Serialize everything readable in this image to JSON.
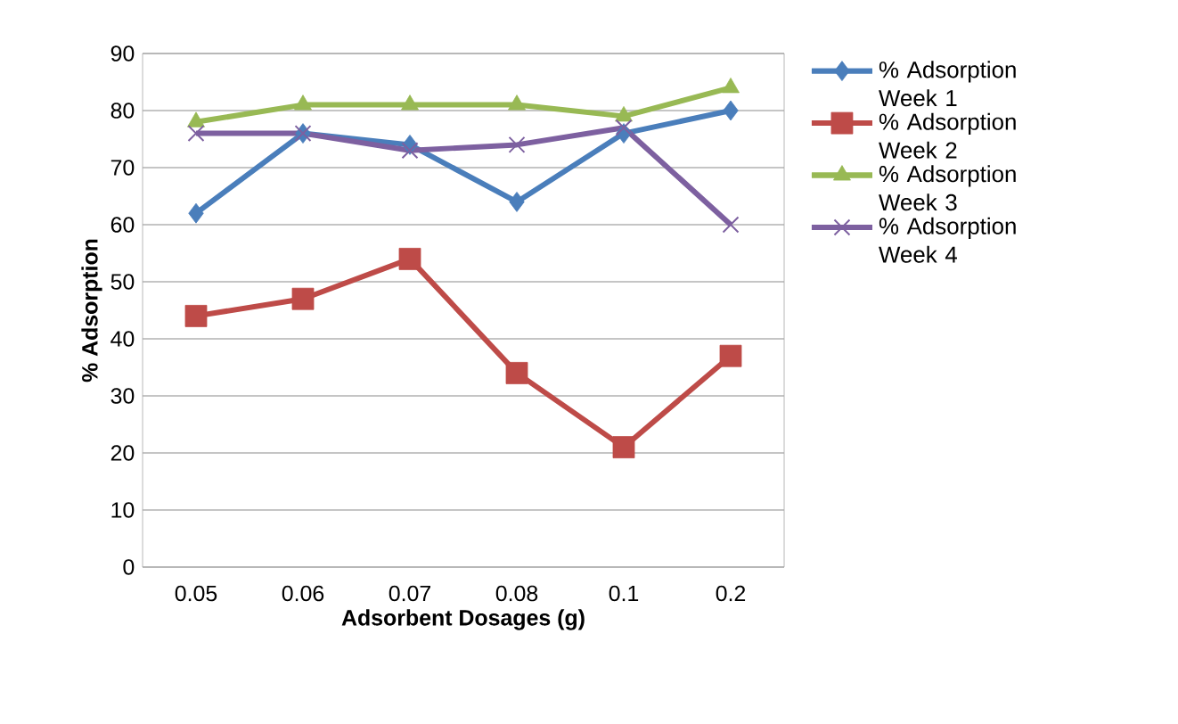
{
  "chart_data": {
    "type": "line",
    "xlabel": "Adsorbent Dosages (g)",
    "ylabel": "% Adsorption",
    "categories": [
      "0.05",
      "0.06",
      "0.07",
      "0.08",
      "0.1",
      "0.2"
    ],
    "ylim": [
      0,
      90
    ],
    "yticks": [
      0,
      10,
      20,
      30,
      40,
      50,
      60,
      70,
      80,
      90
    ],
    "grid": "y",
    "legend": "right",
    "series": [
      {
        "name": "% Adsorption Week 1",
        "color": "#4a7ebb",
        "marker": "diamond",
        "values": [
          62,
          76,
          74,
          64,
          76,
          80
        ]
      },
      {
        "name": "% Adsorption Week 2",
        "color": "#be4b48",
        "marker": "square",
        "values": [
          44,
          47,
          54,
          34,
          21,
          37
        ]
      },
      {
        "name": "% Adsorption Week 3",
        "color": "#98b954",
        "marker": "triangle",
        "values": [
          78,
          81,
          81,
          81,
          79,
          84
        ]
      },
      {
        "name": "% Adsorption Week 4",
        "color": "#7d60a0",
        "marker": "cross",
        "values": [
          76,
          76,
          73,
          74,
          77,
          60
        ]
      }
    ]
  }
}
